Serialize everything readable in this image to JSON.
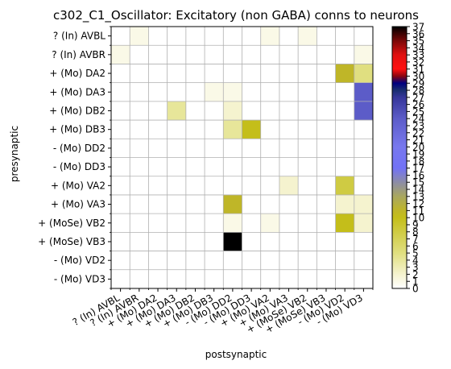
{
  "chart_data": {
    "type": "heatmap",
    "title": "c302_C1_Oscillator: Excitatory (non GABA) conns to neurons",
    "xlabel": "postsynaptic",
    "ylabel": "presynaptic",
    "rows": [
      "? (In) AVBL",
      "? (In) AVBR",
      "+ (Mo) DA2",
      "+ (Mo) DA3",
      "+ (Mo) DB2",
      "+ (Mo) DB3",
      "- (Mo) DD2",
      "- (Mo) DD3",
      "+ (Mo) VA2",
      "+ (Mo) VA3",
      "+ (MoSe) VB2",
      "+ (MoSe) VB3",
      "- (Mo) VD2",
      "- (Mo) VD3"
    ],
    "columns": [
      "? (In) AVBL",
      "? (In) AVBR",
      "+ (Mo) DA2",
      "+ (Mo) DA3",
      "+ (Mo) DB2",
      "+ (Mo) DB3",
      "- (Mo) DD2",
      "- (Mo) DD3",
      "+ (Mo) VA2",
      "+ (Mo) VA3",
      "+ (MoSe) VB2",
      "+ (MoSe) VB3",
      "- (Mo) VD2",
      "- (Mo) VD3"
    ],
    "values": [
      [
        0,
        1,
        0,
        0,
        0,
        0,
        0,
        0,
        1,
        0,
        1,
        0,
        0,
        0
      ],
      [
        1,
        0,
        0,
        0,
        0,
        0,
        0,
        0,
        0,
        0,
        0,
        0,
        0,
        1
      ],
      [
        0,
        0,
        0,
        0,
        0,
        0,
        0,
        0,
        0,
        0,
        0,
        0,
        11,
        5
      ],
      [
        0,
        0,
        0,
        0,
        0,
        1,
        1,
        0,
        0,
        0,
        0,
        0,
        0,
        24
      ],
      [
        0,
        0,
        0,
        4,
        0,
        0,
        2,
        0,
        0,
        0,
        0,
        0,
        0,
        24
      ],
      [
        0,
        0,
        0,
        0,
        0,
        0,
        4,
        10,
        0,
        0,
        0,
        0,
        0,
        0
      ],
      [
        0,
        0,
        0,
        0,
        0,
        0,
        0,
        0,
        0,
        0,
        0,
        0,
        0,
        0
      ],
      [
        0,
        0,
        0,
        0,
        0,
        0,
        0,
        0,
        0,
        0,
        0,
        0,
        0,
        0
      ],
      [
        0,
        0,
        0,
        0,
        0,
        0,
        0,
        0,
        0,
        2,
        0,
        0,
        8,
        0
      ],
      [
        0,
        0,
        0,
        0,
        0,
        0,
        11,
        0,
        0,
        0,
        0,
        0,
        2,
        2
      ],
      [
        0,
        0,
        0,
        0,
        0,
        0,
        1,
        0,
        1,
        0,
        0,
        0,
        10,
        2
      ],
      [
        0,
        0,
        0,
        0,
        0,
        0,
        37,
        0,
        0,
        0,
        0,
        0,
        0,
        0
      ],
      [
        0,
        0,
        0,
        0,
        0,
        0,
        0,
        0,
        0,
        0,
        0,
        0,
        0,
        0
      ],
      [
        0,
        0,
        0,
        0,
        0,
        0,
        0,
        0,
        0,
        0,
        0,
        0,
        0,
        0
      ]
    ],
    "vmin": 0,
    "vmax": 37,
    "colormap": "gist_stern_r",
    "colorbar_ticks": [
      0,
      1,
      2,
      3,
      4,
      5,
      6,
      7,
      8,
      9,
      10,
      11,
      12,
      13,
      14,
      15,
      16,
      17,
      18,
      19,
      20,
      21,
      22,
      23,
      24,
      25,
      26,
      27,
      28,
      29,
      30,
      31,
      32,
      33,
      34,
      35,
      36,
      37
    ],
    "grid": true,
    "colorbar_stops": [
      {
        "v": 0,
        "color": "#ffffff"
      },
      {
        "v": 2,
        "color": "#f5f3cf"
      },
      {
        "v": 5,
        "color": "#e0df80"
      },
      {
        "v": 10,
        "color": "#c4be1a"
      },
      {
        "v": 11,
        "color": "#bfb628"
      },
      {
        "v": 13,
        "color": "#a9a75f"
      },
      {
        "v": 15,
        "color": "#8c8ca6"
      },
      {
        "v": 17,
        "color": "#7272f6"
      },
      {
        "v": 20,
        "color": "#7878ee"
      },
      {
        "v": 24,
        "color": "#5c5cc8"
      },
      {
        "v": 27,
        "color": "#36369a"
      },
      {
        "v": 28,
        "color": "#1a2e70"
      },
      {
        "v": 29,
        "color": "#000080"
      },
      {
        "v": 30,
        "color": "#8a0610"
      },
      {
        "v": 31,
        "color": "#ff1010"
      },
      {
        "v": 33,
        "color": "#e01010"
      },
      {
        "v": 35,
        "color": "#7a0808"
      },
      {
        "v": 37,
        "color": "#000000"
      }
    ]
  }
}
